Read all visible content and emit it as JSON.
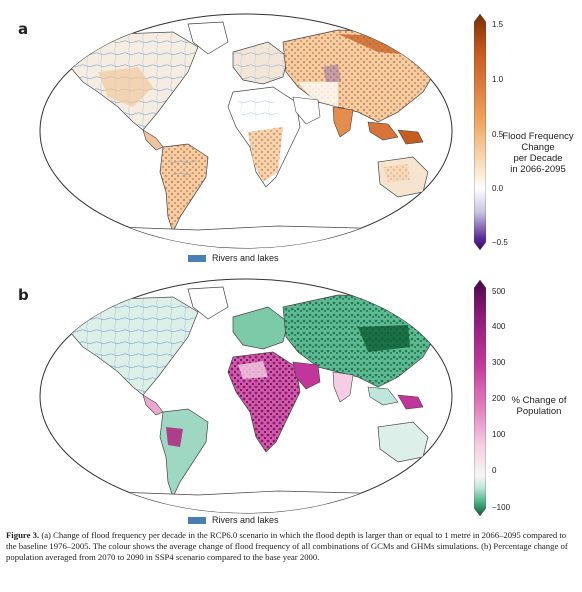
{
  "panel_a": {
    "letter": "a",
    "colorbar": {
      "label_lines": [
        "Flood Frequency",
        "Change",
        "per Decade",
        "in 2066-2095"
      ],
      "ticks": [
        "1.5",
        "1.0",
        "0.5",
        "0.0",
        "−0.5"
      ],
      "colors": [
        "#7a2d07",
        "#c4561c",
        "#f1a35c",
        "#fbe2c6",
        "#ffffff",
        "#c9c4e3",
        "#5a2a99",
        "#3b0a6e"
      ]
    },
    "legend_label": "Rivers and lakes"
  },
  "panel_b": {
    "letter": "b",
    "colorbar": {
      "label_lines": [
        "% Change of",
        "Population"
      ],
      "ticks": [
        "500",
        "400",
        "300",
        "200",
        "100",
        "0",
        "−100"
      ],
      "colors": [
        "#4a0a4a",
        "#8c1a7a",
        "#c2369a",
        "#e384bf",
        "#f6cde2",
        "#f7f7f7",
        "#bfe6da",
        "#4fb38b",
        "#0c5c33"
      ]
    },
    "legend_label": "Rivers and lakes"
  },
  "caption": {
    "figure_label": "Figure 3.",
    "text": " (a) Change of flood frequency per decade in the RCP6.0 scenario in which the flood depth is larger than or equal to 1 metre in 2066–2095 compared to the baseline 1976–2005. The colour shows the average change of flood frequency of all combinations of GCMs and GHMs simulations. (b) Percentage change of population averaged from 2070 to 2090 in SSP4 scenario compared to the base year 2000."
  },
  "colors": {
    "river": "#4a7fb5",
    "land_a": "#f4efe8",
    "land_b": "#dff1ec"
  }
}
